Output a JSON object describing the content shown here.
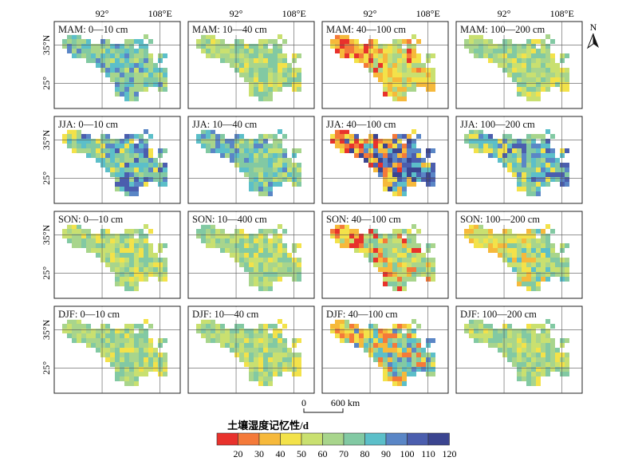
{
  "figure": {
    "longitude_ticks": [
      "92°",
      "108°E"
    ],
    "latitude_ticks": [
      "35°N",
      "25°"
    ],
    "north_arrow": {
      "label": "N",
      "icon": "north-arrow-icon"
    },
    "scale_bar": {
      "start": "0",
      "end": "600 km"
    },
    "legend": {
      "title": "土壤湿度记忆性/d",
      "ticks": [
        "20",
        "30",
        "40",
        "50",
        "60",
        "70",
        "80",
        "90",
        "100",
        "110",
        "120"
      ],
      "colors": [
        "#e8322c",
        "#f47a3a",
        "#f6b93b",
        "#f3e24a",
        "#c9e070",
        "#a8d58c",
        "#82c9a3",
        "#5cbfc9",
        "#5a86c6",
        "#4b5eae",
        "#3b4590"
      ]
    }
  },
  "panels": [
    {
      "label": "MAM: 0—10 cm",
      "season": "MAM",
      "layer": "0-10",
      "dominant": "blue-green"
    },
    {
      "label": "MAM: 10—40 cm",
      "season": "MAM",
      "layer": "10-40",
      "dominant": "green"
    },
    {
      "label": "MAM: 40—100 cm",
      "season": "MAM",
      "layer": "40-100",
      "dominant": "orange-yellow"
    },
    {
      "label": "MAM: 100—200 cm",
      "season": "MAM",
      "layer": "100-200",
      "dominant": "green"
    },
    {
      "label": "JJA: 0—10 cm",
      "season": "JJA",
      "layer": "0-10",
      "dominant": "blue"
    },
    {
      "label": "JJA: 10—40 cm",
      "season": "JJA",
      "layer": "10-40",
      "dominant": "blue-green"
    },
    {
      "label": "JJA: 40—100 cm",
      "season": "JJA",
      "layer": "40-100",
      "dominant": "orange-blue"
    },
    {
      "label": "JJA: 100—200 cm",
      "season": "JJA",
      "layer": "100-200",
      "dominant": "blue"
    },
    {
      "label": "SON: 0—10 cm",
      "season": "SON",
      "layer": "0-10",
      "dominant": "green"
    },
    {
      "label": "SON: 10—400 cm",
      "season": "SON",
      "layer": "10-400",
      "dominant": "green"
    },
    {
      "label": "SON: 40—100 cm",
      "season": "SON",
      "layer": "40-100",
      "dominant": "orange-green"
    },
    {
      "label": "SON: 100—200 cm",
      "season": "SON",
      "layer": "100-200",
      "dominant": "yellow-green"
    },
    {
      "label": "DJF: 0—10 cm",
      "season": "DJF",
      "layer": "0-10",
      "dominant": "green"
    },
    {
      "label": "DJF: 10—40 cm",
      "season": "DJF",
      "layer": "10-40",
      "dominant": "green"
    },
    {
      "label": "DJF: 40—100 cm",
      "season": "DJF",
      "layer": "40-100",
      "dominant": "orange-cyan"
    },
    {
      "label": "DJF: 100—200 cm",
      "season": "DJF",
      "layer": "100-200",
      "dominant": "green"
    }
  ]
}
